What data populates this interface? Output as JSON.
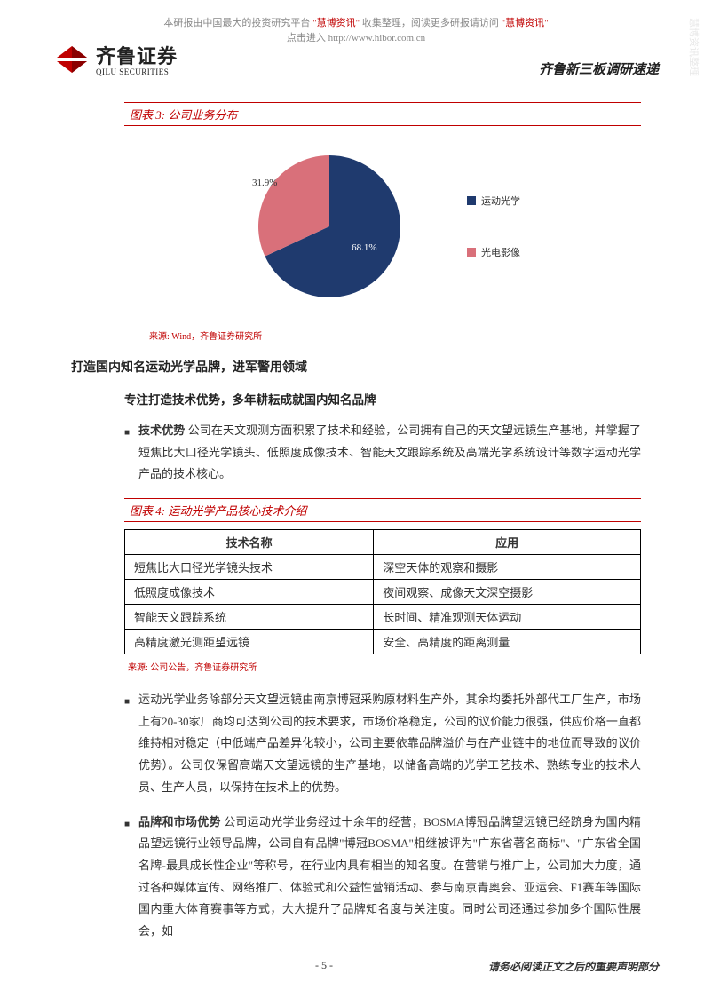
{
  "watermark": {
    "line1_pre": "本研报由中国最大的投资研究平台 ",
    "line1_h1": "\"慧博资讯\"",
    "line1_mid": " 收集整理，阅读更多研报请访问 ",
    "line1_h2": "\"慧博资讯\"",
    "line2_pre": "点击进入 ",
    "line2_link": "http://www.hibor.com.cn",
    "side": "慧博资讯整理"
  },
  "logo": {
    "cn": "齐鲁证券",
    "en": "QILU SECURITIES",
    "color": "#c00000"
  },
  "doc_title": "齐鲁新三板调研速递",
  "figure3": {
    "title": "图表 3: 公司业务分布",
    "type": "pie",
    "slices": [
      {
        "label": "运动光学",
        "value": 68.1,
        "pct_label": "68.1%",
        "color": "#1f3a6e"
      },
      {
        "label": "光电影像",
        "value": 31.9,
        "pct_label": "31.9%",
        "color": "#d9707a"
      }
    ],
    "background_color": "#ffffff",
    "label_fontsize": 11,
    "source": "来源: Wind，齐鲁证券研究所"
  },
  "section_h1": "打造国内知名运动光学品牌，进军警用领域",
  "section_h2": "专注打造技术优势，多年耕耘成就国内知名品牌",
  "bullets": {
    "b1_lead": "技术优势",
    "b1_text": " 公司在天文观测方面积累了技术和经验，公司拥有自己的天文望远镜生产基地，并掌握了短焦比大口径光学镜头、低照度成像技术、智能天文跟踪系统及高端光学系统设计等数字运动光学产品的技术核心。",
    "b2_text": "运动光学业务除部分天文望远镜由南京博冠采购原材料生产外，其余均委托外部代工厂生产，市场上有20-30家厂商均可达到公司的技术要求，市场价格稳定，公司的议价能力很强，供应价格一直都维持相对稳定（中低端产品差异化较小，公司主要依靠品牌溢价与在产业链中的地位而导致的议价优势）。公司仅保留高端天文望远镜的生产基地，以储备高端的光学工艺技术、熟练专业的技术人员、生产人员，以保持在技术上的优势。",
    "b3_lead": "品牌和市场优势",
    "b3_text": " 公司运动光学业务经过十余年的经营，BOSMA博冠品牌望远镜已经跻身为国内精品望远镜行业领导品牌，公司自有品牌\"博冠BOSMA\"相继被评为\"广东省著名商标\"、\"广东省全国名牌-最具成长性企业\"等称号，在行业内具有相当的知名度。在营销与推广上，公司加大力度，通过各种媒体宣传、网络推广、体验式和公益性营销活动、参与南京青奥会、亚运会、F1赛车等国际国内重大体育赛事等方式，大大提升了品牌知名度与关注度。同时公司还通过参加多个国际性展会，如"
  },
  "figure4": {
    "title": "图表 4: 运动光学产品核心技术介绍",
    "type": "table",
    "columns": [
      "技术名称",
      "应用"
    ],
    "rows": [
      [
        "短焦比大口径光学镜头技术",
        "深空天体的观察和摄影"
      ],
      [
        "低照度成像技术",
        "夜间观察、成像天文深空摄影"
      ],
      [
        "智能天文跟踪系统",
        "长时间、精准观测天体运动"
      ],
      [
        "高精度激光测距望远镜",
        "安全、高精度的距离测量"
      ]
    ],
    "border_color": "#000000",
    "header_bg": "#ffffff",
    "fontsize": 13,
    "source": "来源: 公司公告，齐鲁证券研究所"
  },
  "footer": {
    "page": "- 5 -",
    "note": "请务必阅读正文之后的重要声明部分"
  }
}
